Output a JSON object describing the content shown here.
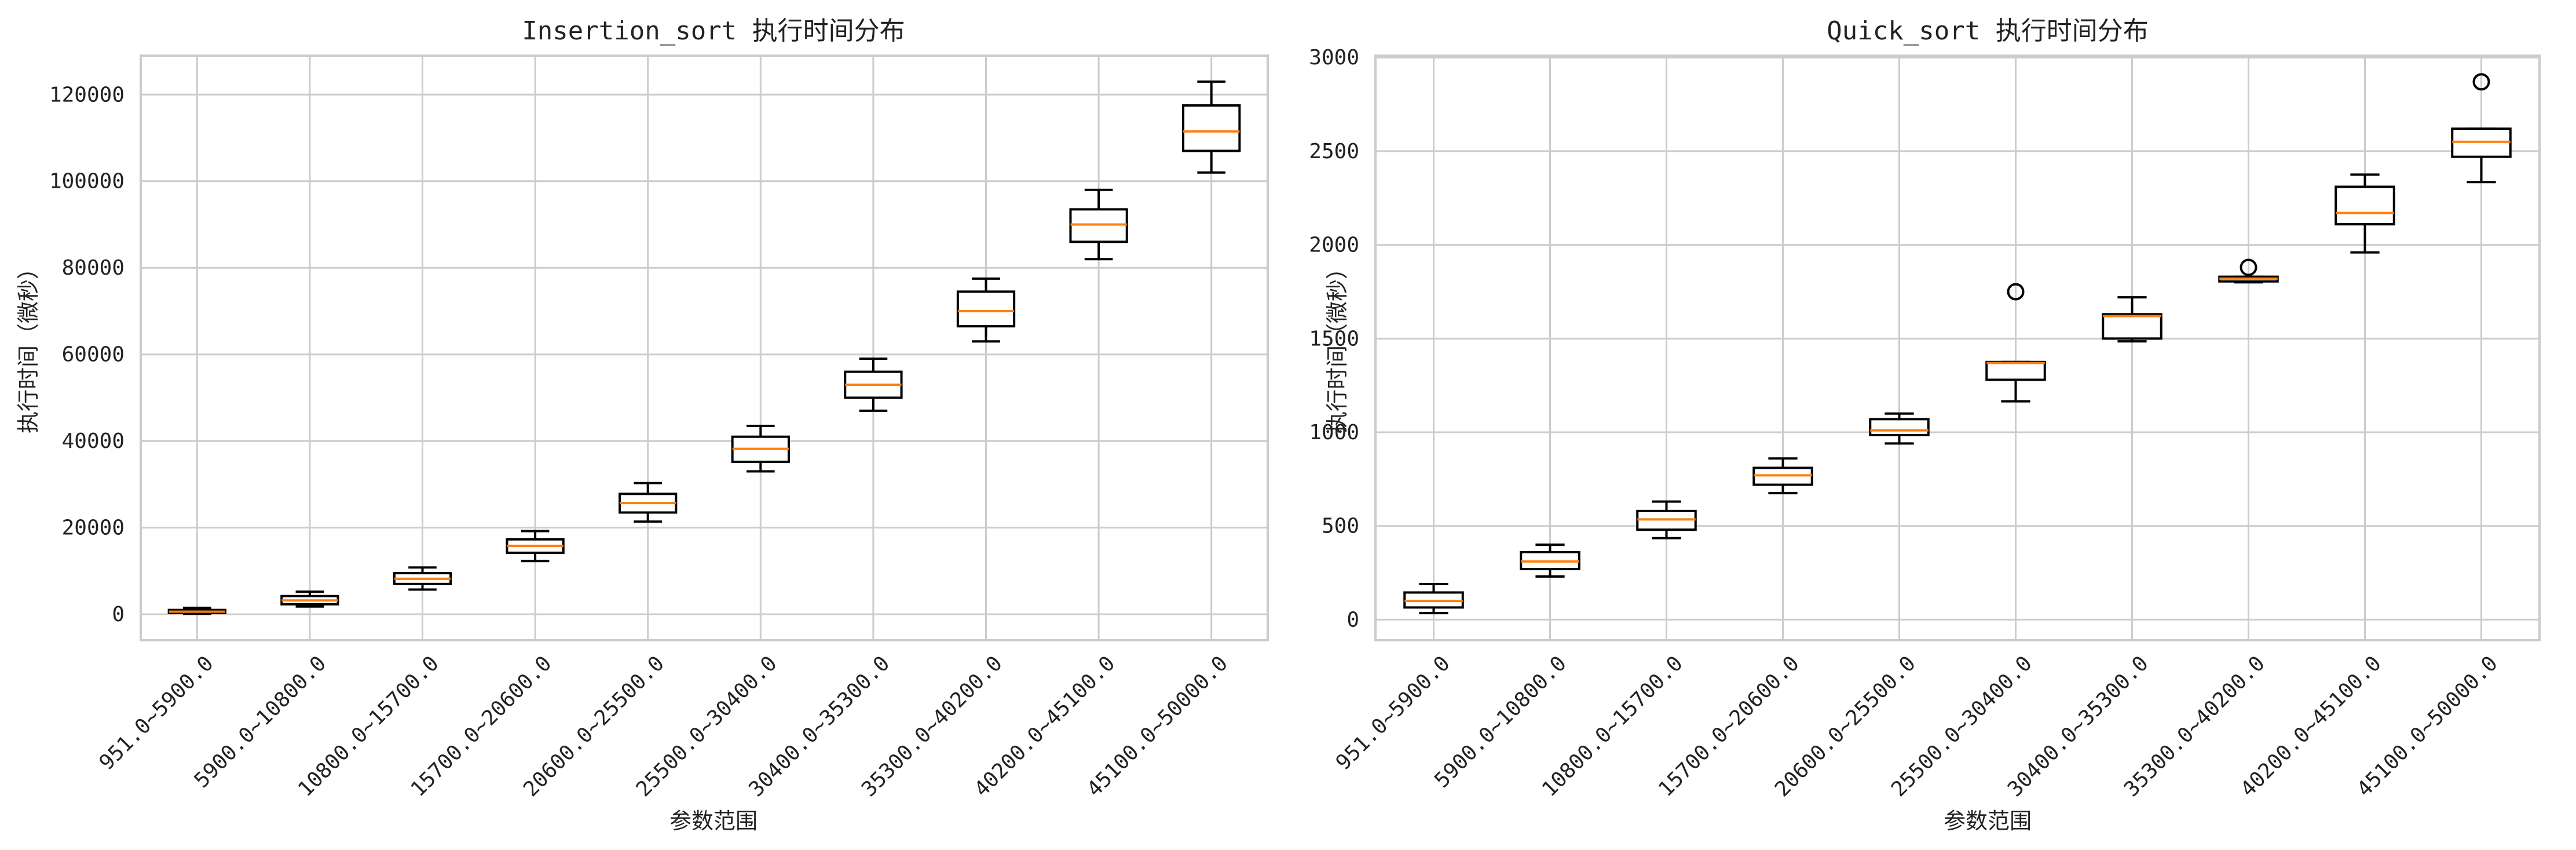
{
  "chart_data": [
    {
      "type": "box",
      "title": "Insertion_sort 执行时间分布",
      "xlabel": "参数范围",
      "ylabel": "执行时间（微秒）",
      "ylim": [
        -6000,
        129000
      ],
      "yticks": [
        0,
        20000,
        40000,
        60000,
        80000,
        100000,
        120000
      ],
      "grid": true,
      "categories": [
        "951.0~5900.0",
        "5900.0~10800.0",
        "10800.0~15700.0",
        "15700.0~20600.0",
        "20600.0~25500.0",
        "25500.0~30400.0",
        "30400.0~35300.0",
        "35300.0~40200.0",
        "40200.0~45100.0",
        "45100.0~50000.0"
      ],
      "boxes": [
        {
          "whislo": 100,
          "q1": 300,
          "med": 600,
          "q3": 1000,
          "whishi": 1500,
          "fliers": []
        },
        {
          "whislo": 1800,
          "q1": 2300,
          "med": 3200,
          "q3": 4200,
          "whishi": 5200,
          "fliers": []
        },
        {
          "whislo": 5700,
          "q1": 7000,
          "med": 8200,
          "q3": 9500,
          "whishi": 10800,
          "fliers": []
        },
        {
          "whislo": 12300,
          "q1": 14200,
          "med": 15800,
          "q3": 17300,
          "whishi": 19200,
          "fliers": []
        },
        {
          "whislo": 21400,
          "q1": 23500,
          "med": 25700,
          "q3": 27800,
          "whishi": 30300,
          "fliers": []
        },
        {
          "whislo": 33000,
          "q1": 35200,
          "med": 38200,
          "q3": 41000,
          "whishi": 43500,
          "fliers": []
        },
        {
          "whislo": 47000,
          "q1": 50000,
          "med": 53000,
          "q3": 56000,
          "whishi": 59000,
          "fliers": []
        },
        {
          "whislo": 63000,
          "q1": 66500,
          "med": 70000,
          "q3": 74500,
          "whishi": 77500,
          "fliers": []
        },
        {
          "whislo": 82000,
          "q1": 86000,
          "med": 90000,
          "q3": 93500,
          "whishi": 98000,
          "fliers": []
        },
        {
          "whislo": 102000,
          "q1": 107000,
          "med": 111500,
          "q3": 117500,
          "whishi": 123000,
          "fliers": []
        }
      ]
    },
    {
      "type": "box",
      "title": "Quick_sort 执行时间分布",
      "xlabel": "参数范围",
      "ylabel": "执行时间（微秒）",
      "ylim": [
        -110,
        3010
      ],
      "yticks": [
        0,
        500,
        1000,
        1500,
        2000,
        2500,
        3000
      ],
      "grid": true,
      "categories": [
        "951.0~5900.0",
        "5900.0~10800.0",
        "10800.0~15700.0",
        "15700.0~20600.0",
        "20600.0~25500.0",
        "25500.0~30400.0",
        "30400.0~35300.0",
        "35300.0~40200.0",
        "40200.0~45100.0",
        "45100.0~50000.0"
      ],
      "boxes": [
        {
          "whislo": 35,
          "q1": 65,
          "med": 100,
          "q3": 145,
          "whishi": 190,
          "fliers": []
        },
        {
          "whislo": 230,
          "q1": 270,
          "med": 310,
          "q3": 360,
          "whishi": 400,
          "fliers": []
        },
        {
          "whislo": 435,
          "q1": 480,
          "med": 535,
          "q3": 580,
          "whishi": 630,
          "fliers": []
        },
        {
          "whislo": 675,
          "q1": 720,
          "med": 770,
          "q3": 810,
          "whishi": 860,
          "fliers": []
        },
        {
          "whislo": 940,
          "q1": 985,
          "med": 1010,
          "q3": 1070,
          "whishi": 1100,
          "fliers": []
        },
        {
          "whislo": 1165,
          "q1": 1280,
          "med": 1370,
          "q3": 1375,
          "whishi": 1375,
          "fliers": [
            1750
          ]
        },
        {
          "whislo": 1485,
          "q1": 1500,
          "med": 1620,
          "q3": 1630,
          "whishi": 1720,
          "fliers": []
        },
        {
          "whislo": 1800,
          "q1": 1805,
          "med": 1820,
          "q3": 1830,
          "whishi": 1830,
          "fliers": [
            1880
          ]
        },
        {
          "whislo": 1960,
          "q1": 2110,
          "med": 2170,
          "q3": 2310,
          "whishi": 2375,
          "fliers": []
        },
        {
          "whislo": 2335,
          "q1": 2470,
          "med": 2550,
          "q3": 2620,
          "whishi": 2620,
          "fliers": [
            2870
          ]
        }
      ]
    }
  ],
  "colors": {
    "box": "#000000",
    "median": "#ff7f0e",
    "grid": "#cccccc",
    "frame": "#cccccc"
  }
}
